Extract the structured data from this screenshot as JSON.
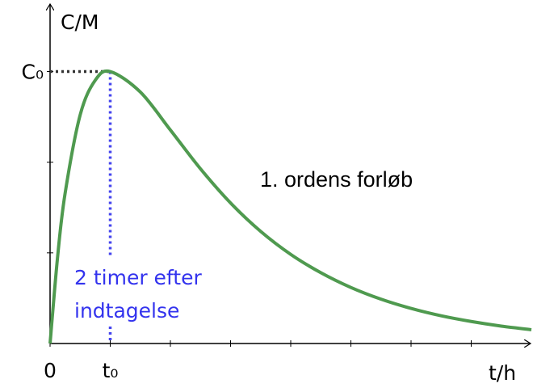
{
  "chart_data": {
    "type": "line",
    "y_label": "C/M",
    "x_label": "t/h",
    "annotations": [
      "1. ordens forløb",
      "2 timer efter",
      "indtagelse"
    ],
    "x": [
      0,
      0.25,
      0.5,
      1,
      1.5,
      2,
      3,
      4,
      5,
      6,
      7,
      8,
      9,
      10,
      11,
      12,
      13,
      14,
      15,
      16
    ],
    "series": [
      {
        "name": "1. ordens forløb",
        "color": "#4f9a4f",
        "values": [
          0,
          0.954,
          1.657,
          2.521,
          2.903,
          3.0,
          2.774,
          2.355,
          1.927,
          1.55,
          1.237,
          0.983,
          0.781,
          0.618,
          0.489,
          0.387,
          0.306,
          0.243,
          0.192,
          0.152
        ]
      }
    ],
    "xlim": [
      0,
      16
    ],
    "ylim": [
      0,
      3.7
    ],
    "xticks": [
      {
        "value": 0,
        "label": "0"
      },
      {
        "value": 2,
        "label": "t₀"
      },
      {
        "value": 4,
        "label": null
      },
      {
        "value": 6,
        "label": null
      },
      {
        "value": 8,
        "label": null
      },
      {
        "value": 10,
        "label": null
      },
      {
        "value": 12,
        "label": null
      },
      {
        "value": 14,
        "label": null
      }
    ],
    "yticks": [
      {
        "value": 1,
        "label": null
      },
      {
        "value": 2,
        "label": null
      },
      {
        "value": 3,
        "label": "C₀"
      }
    ],
    "grid": false
  }
}
